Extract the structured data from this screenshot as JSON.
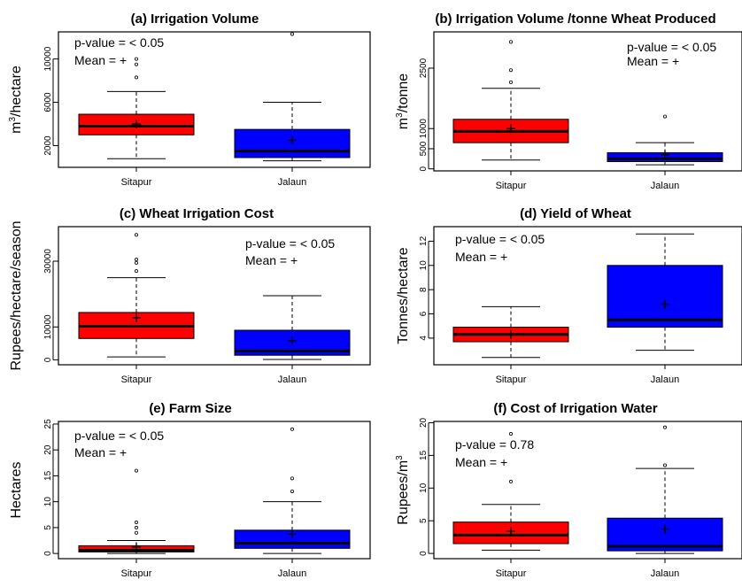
{
  "chart_data": [
    {
      "type": "boxplot",
      "panel": "(a)",
      "title": "Irrigation Volume",
      "ylabel_main": "m",
      "ylabel_sup": "3",
      "ylabel_rest": "/hectare",
      "annotations": [
        "p-value = < 0.05",
        "Mean = +"
      ],
      "ylim": [
        0,
        12500
      ],
      "yticks": [
        2000,
        6000,
        10000
      ],
      "categories": [
        "Sitapur",
        "Jalaun"
      ],
      "colors": [
        "#ff0000",
        "#0000ff"
      ],
      "boxes": [
        {
          "whisker_low": 800,
          "q1": 3000,
          "median": 3800,
          "q3": 4900,
          "whisker_high": 7000,
          "mean": 4000,
          "outliers": [
            8300,
            9500,
            10000
          ]
        },
        {
          "whisker_low": 600,
          "q1": 900,
          "median": 1500,
          "q3": 3500,
          "whisker_high": 6000,
          "mean": 2500,
          "outliers": [
            12300
          ]
        }
      ]
    },
    {
      "type": "boxplot",
      "panel": "(b)",
      "title": "Irrigation Volume /tonne Wheat Produced",
      "ylabel_main": "m",
      "ylabel_sup": "3",
      "ylabel_rest": "/tonne",
      "annotations": [
        "p-value = < 0.05",
        "Mean = +"
      ],
      "ylim": [
        -50,
        3400
      ],
      "yticks": [
        0,
        500,
        1000,
        2500
      ],
      "categories": [
        "Sitapur",
        "Jalaun"
      ],
      "colors": [
        "#ff0000",
        "#0000ff"
      ],
      "boxes": [
        {
          "whisker_low": 220,
          "q1": 650,
          "median": 930,
          "q3": 1230,
          "whisker_high": 2000,
          "mean": 1000,
          "outliers": [
            2150,
            2450,
            3150
          ]
        },
        {
          "whisker_low": 100,
          "q1": 180,
          "median": 250,
          "q3": 400,
          "whisker_high": 650,
          "mean": 350,
          "outliers": [
            1300
          ]
        }
      ]
    },
    {
      "type": "boxplot",
      "panel": "(c)",
      "title": "Wheat Irrigation Cost",
      "ylabel_main": "Rupees/hectare/season",
      "ylabel_sup": "",
      "ylabel_rest": "",
      "annotations": [
        "p-value = < 0.05",
        "Mean = +"
      ],
      "ylim": [
        -1500,
        40500
      ],
      "yticks": [
        0,
        10000,
        30000
      ],
      "categories": [
        "Sitapur",
        "Jalaun"
      ],
      "colors": [
        "#ff0000",
        "#0000ff"
      ],
      "boxes": [
        {
          "whisker_low": 900,
          "q1": 6500,
          "median": 10200,
          "q3": 14400,
          "whisker_high": 25000,
          "mean": 12800,
          "outliers": [
            27000,
            29500,
            30500,
            38000
          ]
        },
        {
          "whisker_low": 100,
          "q1": 1400,
          "median": 2700,
          "q3": 9000,
          "whisker_high": 19500,
          "mean": 5800,
          "outliers": []
        }
      ]
    },
    {
      "type": "boxplot",
      "panel": "(d)",
      "title": "Yield of Wheat",
      "ylabel_main": "Tonnes/hectare",
      "ylabel_sup": "",
      "ylabel_rest": "",
      "annotations": [
        "p-value = < 0.05",
        "Mean = +"
      ],
      "ylim": [
        1.8,
        13.2
      ],
      "yticks": [
        4,
        6,
        8,
        10,
        12
      ],
      "categories": [
        "Sitapur",
        "Jalaun"
      ],
      "colors": [
        "#ff0000",
        "#0000ff"
      ],
      "boxes": [
        {
          "whisker_low": 2.4,
          "q1": 3.7,
          "median": 4.3,
          "q3": 4.9,
          "whisker_high": 6.6,
          "mean": 4.3,
          "outliers": []
        },
        {
          "whisker_low": 3.0,
          "q1": 4.9,
          "median": 5.5,
          "q3": 10.0,
          "whisker_high": 12.6,
          "mean": 6.8,
          "outliers": []
        }
      ]
    },
    {
      "type": "boxplot",
      "panel": "(e)",
      "title": "Farm Size",
      "ylabel_main": "Hectares",
      "ylabel_sup": "",
      "ylabel_rest": "",
      "annotations": [
        "p-value = < 0.05",
        "Mean = +"
      ],
      "ylim": [
        -1,
        25.5
      ],
      "yticks": [
        0,
        5,
        10,
        15,
        20,
        25
      ],
      "categories": [
        "Sitapur",
        "Jalaun"
      ],
      "colors": [
        "#ff0000",
        "#0000ff"
      ],
      "boxes": [
        {
          "whisker_low": 0,
          "q1": 0.3,
          "median": 0.6,
          "q3": 1.5,
          "whisker_high": 2.5,
          "mean": 1.2,
          "outliers": [
            4,
            5,
            6,
            16
          ]
        },
        {
          "whisker_low": 0,
          "q1": 1.0,
          "median": 2.0,
          "q3": 4.5,
          "whisker_high": 10,
          "mean": 3.7,
          "outliers": [
            12,
            14.5,
            24
          ]
        }
      ]
    },
    {
      "type": "boxplot",
      "panel": "(f)",
      "title": "Cost of Irrigation Water",
      "ylabel_main": "Rupees/m",
      "ylabel_sup": "3",
      "ylabel_rest": "",
      "annotations": [
        "p-value = 0.78",
        "Mean = +"
      ],
      "ylim": [
        -0.8,
        20.2
      ],
      "yticks": [
        0,
        5,
        10,
        15,
        20
      ],
      "categories": [
        "Sitapur",
        "Jalaun"
      ],
      "colors": [
        "#ff0000",
        "#0000ff"
      ],
      "boxes": [
        {
          "whisker_low": 0.5,
          "q1": 1.5,
          "median": 2.8,
          "q3": 4.8,
          "whisker_high": 7.5,
          "mean": 3.4,
          "outliers": [
            11,
            18.3
          ]
        },
        {
          "whisker_low": 0,
          "q1": 0.4,
          "median": 1.1,
          "q3": 5.4,
          "whisker_high": 13,
          "mean": 3.7,
          "outliers": [
            13.5,
            19.3
          ]
        }
      ]
    }
  ]
}
